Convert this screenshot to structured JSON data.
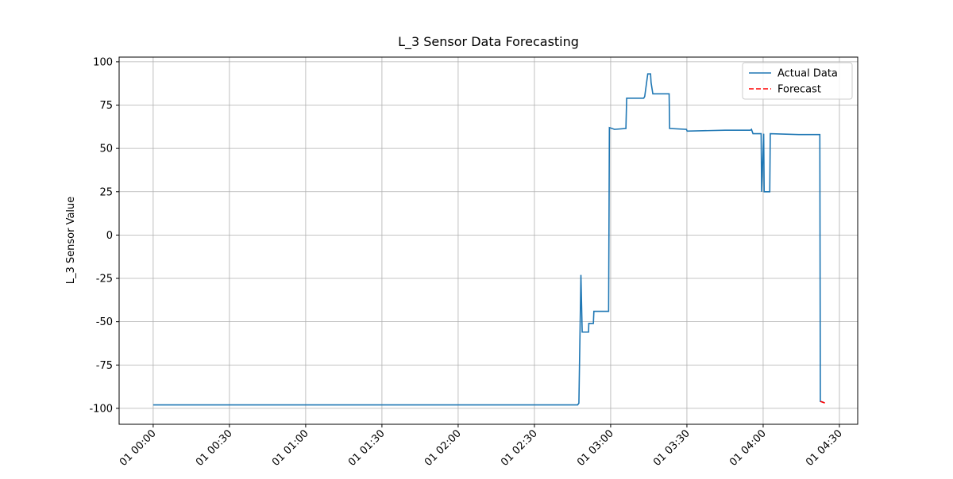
{
  "chart_data": {
    "type": "line",
    "title": "L_3 Sensor Data Forecasting",
    "y_label": "L_3 Sensor Value",
    "xlim": [
      -13.4,
      277.2
    ],
    "ylim": [
      -109.2,
      102.7
    ],
    "xticks": [
      {
        "value": 0,
        "label": "01 00:00"
      },
      {
        "value": 30,
        "label": "01 00:30"
      },
      {
        "value": 60,
        "label": "01 01:00"
      },
      {
        "value": 90,
        "label": "01 01:30"
      },
      {
        "value": 120,
        "label": "01 02:00"
      },
      {
        "value": 150,
        "label": "01 02:30"
      },
      {
        "value": 180,
        "label": "01 03:00"
      },
      {
        "value": 210,
        "label": "01 03:30"
      },
      {
        "value": 240,
        "label": "01 04:00"
      },
      {
        "value": 270,
        "label": "01 04:30"
      }
    ],
    "yticks": [
      -100,
      -75,
      -50,
      -25,
      0,
      25,
      50,
      75,
      100
    ],
    "grid": true,
    "legend": "upper right",
    "series": [
      {
        "name": "Actual Data",
        "color": "#1f77b4",
        "dash": false,
        "x": [
          0,
          167,
          167.5,
          168.3,
          168.8,
          169.2,
          171.3,
          171.4,
          173.2,
          173.4,
          179,
          179.2,
          179.5,
          181.5,
          186,
          186.3,
          193,
          193.4,
          194.6,
          195.7,
          195.9,
          196.6,
          203,
          203.2,
          209.8,
          210.1,
          225,
          235,
          235.4,
          236,
          239.2,
          239.4,
          240.2,
          240.4,
          240.7,
          242.6,
          242.8,
          254,
          262.3,
          262.5,
          263.8
        ],
        "y": [
          -98,
          -98,
          -97,
          -23,
          -56,
          -56,
          -56,
          -51,
          -51,
          -44,
          -44,
          -44,
          62,
          61,
          61.5,
          79,
          79,
          80,
          93,
          93,
          88,
          81.5,
          81.5,
          61.5,
          61,
          60,
          60.5,
          60.5,
          61,
          58.5,
          58.5,
          25,
          58.5,
          25,
          25,
          25,
          58.5,
          58,
          58,
          -96,
          -96.5
        ]
      },
      {
        "name": "Forecast",
        "color": "red",
        "dash": true,
        "x": [
          262.5,
          264.5
        ],
        "y": [
          -96,
          -97
        ]
      }
    ]
  }
}
